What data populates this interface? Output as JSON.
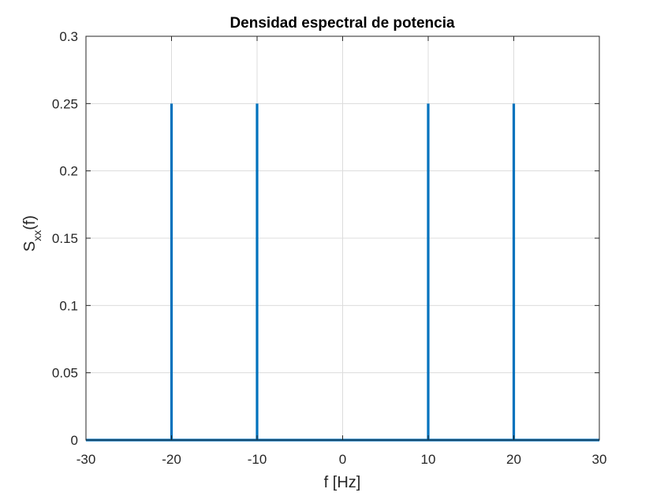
{
  "chart_data": {
    "type": "line",
    "title": "Densidad espectral de potencia",
    "xlabel": "f [Hz]",
    "ylabel_main": "S",
    "ylabel_sub": "xx",
    "ylabel_tail": "(f)",
    "xlim": [
      -30,
      30
    ],
    "ylim": [
      0,
      0.3
    ],
    "xticks": [
      -30,
      -20,
      -10,
      0,
      10,
      20,
      30
    ],
    "xtick_labels": [
      "-30",
      "-20",
      "-10",
      "0",
      "10",
      "20",
      "30"
    ],
    "yticks": [
      0,
      0.05,
      0.1,
      0.15,
      0.2,
      0.25,
      0.3
    ],
    "ytick_labels": [
      "0",
      "0.05",
      "0.1",
      "0.15",
      "0.2",
      "0.25",
      "0.3"
    ],
    "grid": true,
    "series": [
      {
        "color": "#0072bd",
        "x": [
          -30,
          -20,
          -20,
          -20,
          -10,
          -10,
          -10,
          10,
          10,
          10,
          20,
          20,
          20,
          30
        ],
        "y": [
          0,
          0,
          0.25,
          0,
          0,
          0.25,
          0,
          0,
          0.25,
          0,
          0,
          0.25,
          0,
          0
        ]
      }
    ]
  }
}
